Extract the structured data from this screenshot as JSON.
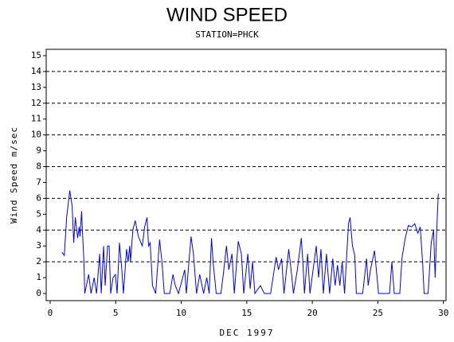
{
  "chart_data": {
    "type": "line",
    "title": "WIND SPEED",
    "subtitle": "STATION=PHCK",
    "x_label": "DEC 1997",
    "y_label": "Wind Speed m/sec",
    "xlim": [
      -0.3,
      30.2
    ],
    "ylim": [
      -0.45,
      15.4
    ],
    "xticks": [
      0,
      5,
      10,
      15,
      20,
      25,
      30
    ],
    "yticks": [
      0,
      1,
      2,
      3,
      4,
      5,
      6,
      7,
      8,
      9,
      10,
      11,
      12,
      13,
      14,
      15
    ],
    "grid_lines": [
      2,
      4,
      6,
      8,
      10,
      12,
      14
    ],
    "series": [
      {
        "color": "#0000ff",
        "x": [
          0.9,
          1.08,
          1.26,
          1.5,
          1.68,
          1.8,
          1.92,
          2.1,
          2.22,
          2.28,
          2.4,
          2.46,
          2.58,
          2.64,
          2.94,
          3.12,
          3.36,
          3.54,
          3.78,
          3.9,
          4.08,
          4.2,
          4.38,
          4.5,
          4.62,
          4.8,
          4.98,
          5.11,
          5.29,
          5.47,
          5.59,
          5.83,
          5.95,
          6.07,
          6.13,
          6.31,
          6.49,
          6.73,
          7.03,
          7.21,
          7.39,
          7.51,
          7.63,
          7.81,
          8.05,
          8.35,
          8.53,
          8.71,
          9.13,
          9.37,
          9.55,
          9.79,
          10.27,
          10.39,
          10.75,
          10.93,
          11.17,
          11.41,
          11.71,
          11.95,
          12.13,
          12.31,
          12.43,
          12.67,
          13.03,
          13.21,
          13.45,
          13.63,
          13.87,
          14.05,
          14.35,
          14.59,
          14.77,
          15.08,
          15.26,
          15.44,
          15.62,
          16.04,
          16.34,
          16.82,
          17.24,
          17.42,
          17.66,
          17.84,
          18.2,
          18.38,
          18.56,
          18.86,
          19.16,
          19.28,
          19.4,
          19.64,
          19.82,
          20.06,
          20.3,
          20.48,
          20.66,
          20.84,
          21.08,
          21.32,
          21.56,
          21.74,
          21.92,
          22.1,
          22.28,
          22.46,
          22.76,
          22.88,
          23.06,
          23.24,
          23.36,
          23.84,
          24.14,
          24.26,
          24.44,
          24.74,
          24.92,
          25.05,
          25.89,
          26.07,
          26.25,
          26.67,
          26.85,
          27.09,
          27.33,
          27.57,
          27.81,
          28.05,
          28.23,
          28.41,
          28.53,
          28.83,
          29.07,
          29.25,
          29.37,
          29.49,
          29.61
        ],
        "values": [
          2.6,
          2.4,
          4.8,
          6.5,
          5.5,
          3.2,
          4.8,
          3.5,
          4.2,
          3.6,
          5.2,
          4,
          2,
          0,
          1.2,
          0,
          1,
          0,
          2.5,
          0,
          3,
          0.5,
          3,
          3,
          0,
          1,
          1.2,
          0,
          3.2,
          1.5,
          0,
          2.8,
          2,
          3,
          2,
          4,
          4.6,
          3.6,
          3,
          4.2,
          4.8,
          3,
          3.2,
          0.5,
          0,
          3.4,
          2,
          0,
          0,
          1.2,
          0.5,
          0,
          1.5,
          0,
          3.6,
          2.5,
          0,
          1.2,
          0,
          1,
          0,
          3.5,
          2,
          0,
          0,
          1.2,
          3,
          1.5,
          2.5,
          0,
          3.3,
          2.5,
          0,
          2.5,
          0.3,
          2,
          0,
          0.5,
          0,
          0,
          2.3,
          1.5,
          2.2,
          0,
          2.8,
          1.5,
          0,
          1.5,
          3.5,
          2,
          0,
          2.5,
          0,
          1.5,
          3,
          1,
          2.8,
          0,
          2.5,
          0,
          2.2,
          0.5,
          1.8,
          0.5,
          2,
          0,
          4.4,
          4.8,
          3,
          2.4,
          0,
          0,
          2.2,
          0.5,
          1.5,
          2.7,
          1.2,
          0,
          0,
          2,
          0,
          0,
          2.3,
          3.5,
          4.3,
          4.2,
          4.4,
          3.8,
          4.2,
          2,
          0,
          0,
          3.2,
          4,
          1,
          4,
          6.3
        ]
      }
    ]
  }
}
